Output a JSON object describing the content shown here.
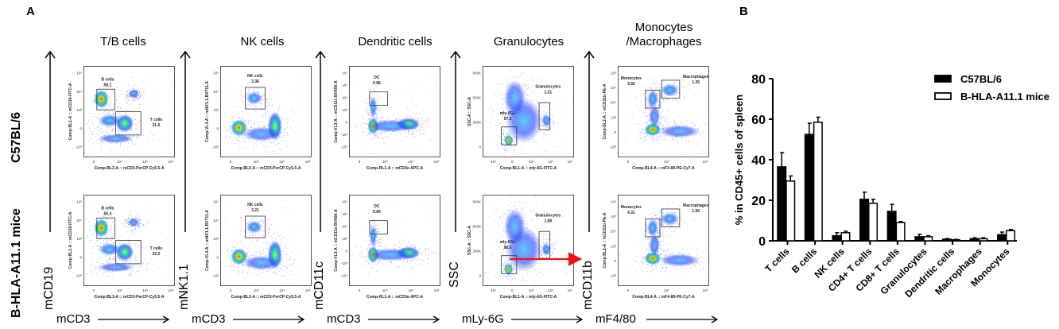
{
  "panel_labels": {
    "a": "A",
    "b": "B"
  },
  "row_labels": [
    "C57BL/6",
    "B-HLA-A11.1 mice"
  ],
  "panels": [
    {
      "title": "T/B cells",
      "title2": "",
      "marker_y": "mCD19",
      "marker_x": "mCD3",
      "ylabel": "Comp-BL1-A :: mCD19-FITC-A",
      "xlabel": "Comp-BL3-A :: mCD3-PerCP-Cy5.5-A",
      "y_ticks": [
        "10⁵",
        "10⁴",
        "10³",
        "0",
        "-10³"
      ],
      "x_ticks": [
        "0",
        "10⁴",
        "10⁵",
        "10⁶"
      ],
      "rows": [
        {
          "gates": [
            {
              "name": "B cells",
              "value": "56.1"
            },
            {
              "name": "T cells",
              "value": "31.6"
            }
          ]
        },
        {
          "gates": [
            {
              "name": "B cells",
              "value": "55.3"
            },
            {
              "name": "T cells",
              "value": "32.2"
            }
          ]
        }
      ]
    },
    {
      "title": "NK cells",
      "title2": "",
      "marker_y": "mNK1.1",
      "marker_x": "mCD3",
      "ylabel": "Comp-VL4-A :: mNK1.1-BV711-A",
      "xlabel": "Comp-BL3-A :: mCD3-PerCP-Cy5.5-A",
      "y_ticks": [
        "10⁵",
        "10⁴",
        "10³",
        "0",
        "-10³"
      ],
      "x_ticks": [
        "0",
        "10⁴",
        "10⁵",
        "10⁶"
      ],
      "rows": [
        {
          "gates": [
            {
              "name": "NK cells",
              "value": "3.36"
            }
          ]
        },
        {
          "gates": [
            {
              "name": "NK cells",
              "value": "3.21"
            }
          ]
        }
      ]
    },
    {
      "title": "Dendritic cells",
      "title2": "",
      "marker_y": "mCD11c",
      "marker_x": "mCD3",
      "ylabel": "Comp-VL3-A :: mCD11c-BV605-A",
      "xlabel": "Comp-RL1-A :: mCD3e-APC-A",
      "y_ticks": [
        "10⁶",
        "10⁵",
        "10⁴",
        "10³",
        "0",
        "-10³",
        "-10⁴"
      ],
      "x_ticks": [
        "0",
        "10⁴",
        "10⁵",
        "10⁶"
      ],
      "rows": [
        {
          "gates": [
            {
              "name": "DC",
              "value": "0.85"
            }
          ]
        },
        {
          "gates": [
            {
              "name": "DC",
              "value": "0.84"
            }
          ]
        }
      ]
    },
    {
      "title": "Granulocytes",
      "title2": "",
      "marker_y": "SSC",
      "marker_x": "mLy-6G",
      "ylabel": "SSC-A :: SSC-A",
      "xlabel": "Comp-BL1-A :: mly-6G-FITC-A",
      "y_ticks": [
        "900K",
        "600K",
        "300K",
        "0"
      ],
      "x_ticks": [
        "-10⁴",
        "0",
        "10⁴",
        "10⁵",
        "10⁷"
      ],
      "rows": [
        {
          "gates": [
            {
              "name": "mly-6G+",
              "value": "97.3"
            },
            {
              "name": "Granulocytes",
              "value": "1.21"
            }
          ]
        },
        {
          "gates": [
            {
              "name": "mly-6G+",
              "value": "96.5"
            },
            {
              "name": "Granulocytes",
              "value": "1.68"
            }
          ]
        }
      ]
    },
    {
      "title": "Monocytes",
      "title2": "/Macrophages",
      "marker_y": "mCD11b",
      "marker_x": "mF4/80",
      "ylabel": "Comp-BL2-A :: mCD11b-PE-A",
      "xlabel": "Comp-BL4-A :: mF4-80-PE-Cy7-A",
      "y_ticks": [
        "10⁶",
        "10⁵",
        "10⁴",
        "10³",
        "0",
        "-10³"
      ],
      "x_ticks": [
        "0",
        "10⁴",
        "10⁵"
      ],
      "rows": [
        {
          "gates": [
            {
              "name": "Monocytes",
              "value": "3.92"
            },
            {
              "name": "Macrophages",
              "value": "1.35"
            }
          ]
        },
        {
          "gates": [
            {
              "name": "Monocytes",
              "value": "4.31"
            },
            {
              "name": "Macrophages",
              "value": "1.06"
            }
          ]
        }
      ]
    }
  ],
  "colors": {
    "c57": "#000000",
    "hla": "#ffffff",
    "arrow": "#ee1111"
  },
  "chart_data": {
    "type": "bar",
    "title": "",
    "xlabel": "",
    "ylabel": "% in CD45+ cells of spleen",
    "ylim": [
      0,
      80
    ],
    "yticks": [
      0,
      20,
      40,
      60,
      80
    ],
    "grid": false,
    "legend_position": "top-right",
    "categories": [
      "T cells",
      "B cells",
      "NK cells",
      "CD4+ T cells",
      "CD8+ T cells",
      "Granulocytes",
      "Dendritic cells",
      "Macrophages",
      "Monocytes"
    ],
    "series": [
      {
        "name": "C57BL/6",
        "fill": "#000000",
        "values": [
          36.5,
          52.5,
          2.5,
          20.5,
          14.5,
          2.0,
          0.8,
          1.0,
          3.0
        ],
        "errors": [
          7.0,
          5.5,
          1.5,
          3.5,
          3.5,
          1.2,
          0.3,
          0.5,
          1.3
        ]
      },
      {
        "name": "B-HLA-A11.1 mice",
        "fill": "#ffffff",
        "values": [
          29.5,
          58.5,
          4.0,
          18.5,
          9.0,
          2.0,
          0.5,
          1.0,
          5.0
        ],
        "errors": [
          2.5,
          2.5,
          0.7,
          2.0,
          0.5,
          0.5,
          0.2,
          0.5,
          0.6
        ]
      }
    ]
  }
}
